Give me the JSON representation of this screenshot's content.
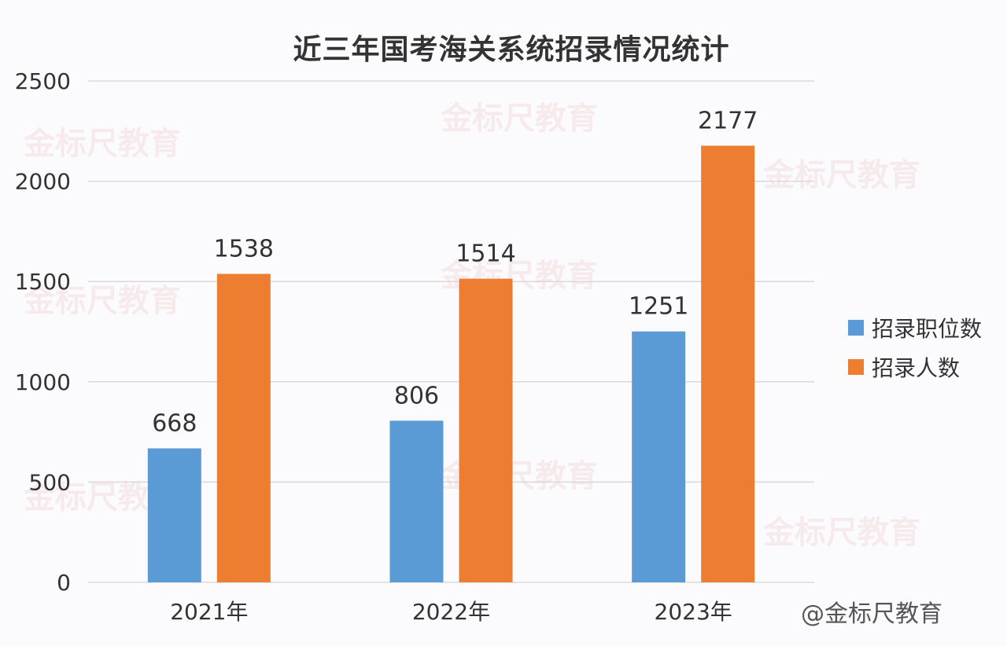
{
  "chart_data": {
    "type": "bar",
    "title": "近三年国考海关系统招录情况统计",
    "categories": [
      "2021年",
      "2022年",
      "2023年"
    ],
    "series": [
      {
        "name": "招录职位数",
        "values": [
          668,
          806,
          1251
        ],
        "color": "#5b9bd5"
      },
      {
        "name": "招录人数",
        "values": [
          1538,
          1514,
          2177
        ],
        "color": "#ed7d31"
      }
    ],
    "ylim": [
      0,
      2500
    ],
    "yticks": [
      0,
      500,
      1000,
      1500,
      2000,
      2500
    ],
    "grid": true,
    "legend_position": "right"
  },
  "watermark": "金标尺教育",
  "source_watermark": "@金标尺教育",
  "legend_icons": [
    "blue-square",
    "orange-square"
  ]
}
